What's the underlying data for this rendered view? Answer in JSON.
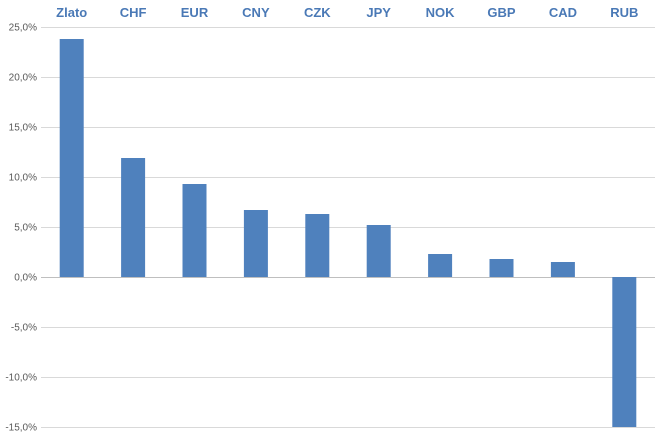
{
  "chart_data": {
    "type": "bar",
    "title": "",
    "xlabel": "",
    "ylabel": "",
    "categories": [
      "Zlato",
      "CHF",
      "EUR",
      "CNY",
      "CZK",
      "JPY",
      "NOK",
      "GBP",
      "CAD",
      "RUB"
    ],
    "values": [
      23.8,
      11.9,
      9.3,
      6.7,
      6.3,
      5.2,
      2.3,
      1.8,
      1.5,
      -15.0
    ],
    "ylim": [
      -15,
      25
    ],
    "y_ticks": [
      -15,
      -10,
      -5,
      0,
      5,
      10,
      15,
      20,
      25
    ],
    "y_tick_labels": [
      "-15,0%",
      "-10,0%",
      "-5,0%",
      "0,0%",
      "5,0%",
      "10,0%",
      "15,0%",
      "20,0%",
      "25,0%"
    ],
    "category_labels_position": "top",
    "grid": true,
    "legend": "none",
    "bar_color": "#4f81bd",
    "label_color": "#4a79b6"
  }
}
